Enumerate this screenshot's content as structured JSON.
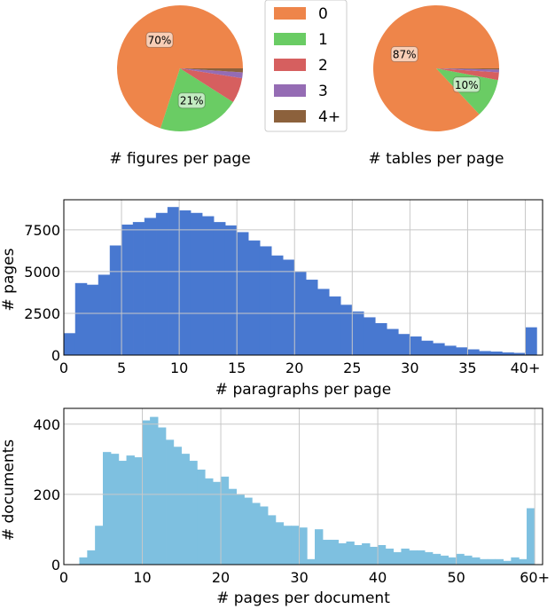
{
  "chart_data": [
    {
      "type": "pie",
      "title": "# figures per page",
      "labels": [
        "0",
        "1",
        "2",
        "3",
        "4+"
      ],
      "values": [
        70,
        21,
        6.5,
        1.5,
        1
      ],
      "data_labels": [
        "70%",
        "21%",
        "",
        "",
        ""
      ],
      "colors": [
        "#EE854A",
        "#6ACC64",
        "#D65F5F",
        "#956CB4",
        "#8C613C"
      ]
    },
    {
      "type": "pie",
      "title": "# tables per page",
      "labels": [
        "0",
        "1",
        "2",
        "3",
        "4+"
      ],
      "values": [
        87,
        10,
        2,
        0.7,
        0.3
      ],
      "data_labels": [
        "87%",
        "10%",
        "",
        "",
        ""
      ],
      "colors": [
        "#EE854A",
        "#6ACC64",
        "#D65F5F",
        "#956CB4",
        "#8C613C"
      ]
    },
    {
      "type": "bar",
      "xlabel": "# paragraphs per page",
      "ylabel": "# pages",
      "xlim": [
        0,
        41.5
      ],
      "ylim": [
        0,
        9300
      ],
      "xticks": [
        0,
        5,
        10,
        15,
        20,
        25,
        30,
        35,
        40
      ],
      "xtick_labels": [
        "0",
        "5",
        "10",
        "15",
        "20",
        "25",
        "30",
        "35",
        "40+"
      ],
      "yticks": [
        0,
        2500,
        5000,
        7500
      ],
      "bin_width": 1,
      "x": [
        0,
        1,
        2,
        3,
        4,
        5,
        6,
        7,
        8,
        9,
        10,
        11,
        12,
        13,
        14,
        15,
        16,
        17,
        18,
        19,
        20,
        21,
        22,
        23,
        24,
        25,
        26,
        27,
        28,
        29,
        30,
        31,
        32,
        33,
        34,
        35,
        36,
        37,
        38,
        39,
        40
      ],
      "values": [
        1300,
        4300,
        4200,
        4800,
        6550,
        7800,
        7950,
        8200,
        8500,
        8850,
        8650,
        8500,
        8300,
        7950,
        7750,
        7350,
        6850,
        6500,
        5950,
        5700,
        5000,
        4500,
        3950,
        3500,
        3000,
        2600,
        2250,
        1900,
        1550,
        1250,
        1100,
        850,
        700,
        550,
        450,
        330,
        230,
        200,
        150,
        120,
        1650
      ],
      "color": "#4878D0"
    },
    {
      "type": "bar",
      "xlabel": "# pages per document",
      "ylabel": "# documents",
      "xlim": [
        0,
        61
      ],
      "ylim": [
        0,
        445
      ],
      "xticks": [
        0,
        10,
        20,
        30,
        40,
        50,
        60
      ],
      "xtick_labels": [
        "0",
        "10",
        "20",
        "30",
        "40",
        "50",
        "60+"
      ],
      "yticks": [
        0,
        200,
        400
      ],
      "bin_width": 1,
      "x": [
        2,
        3,
        4,
        5,
        6,
        7,
        8,
        9,
        10,
        11,
        12,
        13,
        14,
        15,
        16,
        17,
        18,
        19,
        20,
        21,
        22,
        23,
        24,
        25,
        26,
        27,
        28,
        29,
        30,
        31,
        32,
        33,
        34,
        35,
        36,
        37,
        38,
        39,
        40,
        41,
        42,
        43,
        44,
        45,
        46,
        47,
        48,
        49,
        50,
        51,
        52,
        53,
        54,
        55,
        56,
        57,
        58,
        59
      ],
      "values": [
        20,
        40,
        110,
        320,
        315,
        295,
        310,
        305,
        410,
        420,
        390,
        355,
        335,
        315,
        295,
        270,
        245,
        235,
        250,
        215,
        200,
        190,
        175,
        165,
        140,
        120,
        110,
        110,
        105,
        15,
        100,
        70,
        70,
        60,
        65,
        55,
        60,
        50,
        55,
        45,
        35,
        45,
        40,
        40,
        35,
        30,
        25,
        20,
        30,
        25,
        20,
        15,
        15,
        15,
        10,
        20,
        15,
        160
      ],
      "color": "#7EC0E0"
    }
  ]
}
